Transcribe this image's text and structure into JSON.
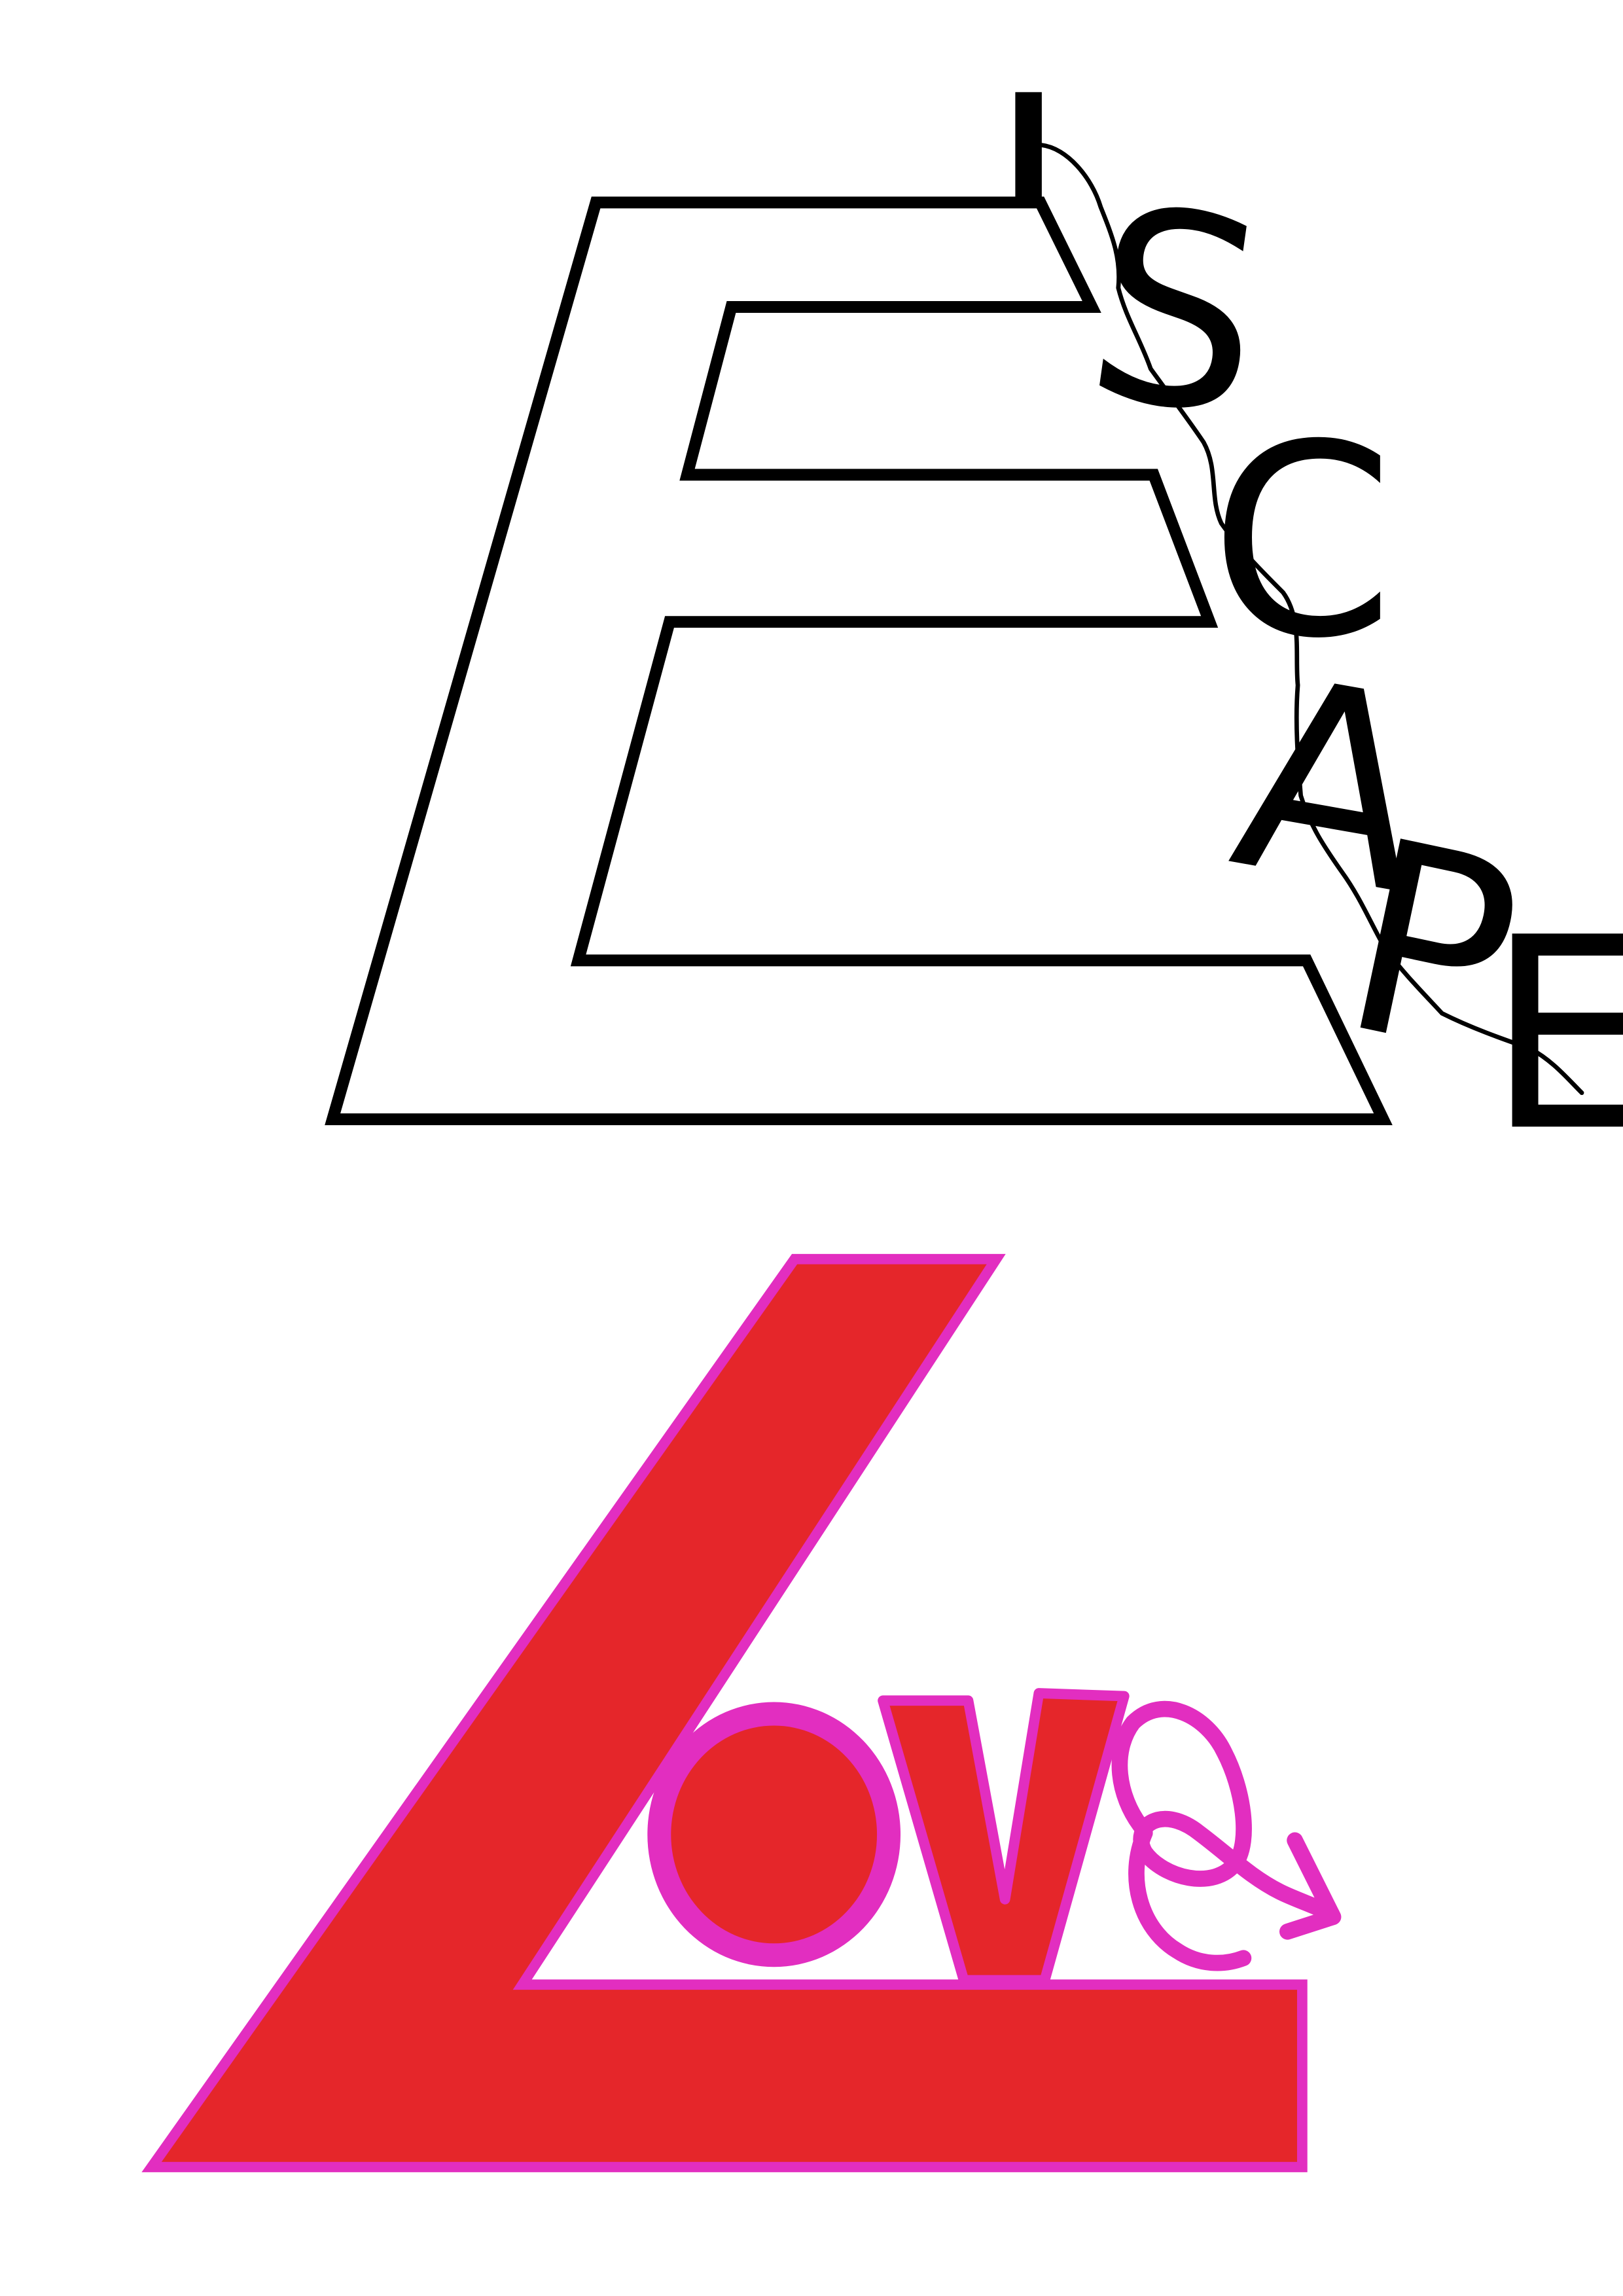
{
  "escape_artwork": {
    "letters": [
      "S",
      "C",
      "A",
      "P",
      "E"
    ],
    "stroke_color": "#000000",
    "background_color": "#ffffff"
  },
  "love_artwork": {
    "letters": [
      "O",
      "V",
      "E"
    ],
    "fill_color": "#e5262a",
    "outline_color": "#e22ec0"
  }
}
